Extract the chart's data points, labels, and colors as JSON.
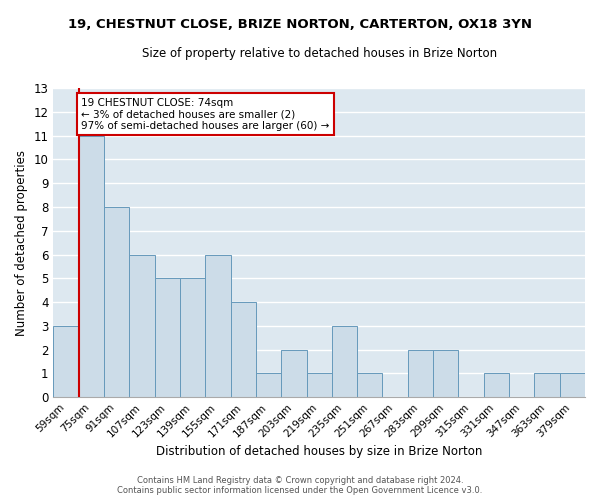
{
  "title": "19, CHESTNUT CLOSE, BRIZE NORTON, CARTERTON, OX18 3YN",
  "subtitle": "Size of property relative to detached houses in Brize Norton",
  "xlabel": "Distribution of detached houses by size in Brize Norton",
  "ylabel": "Number of detached properties",
  "categories": [
    "59sqm",
    "75sqm",
    "91sqm",
    "107sqm",
    "123sqm",
    "139sqm",
    "155sqm",
    "171sqm",
    "187sqm",
    "203sqm",
    "219sqm",
    "235sqm",
    "251sqm",
    "267sqm",
    "283sqm",
    "299sqm",
    "315sqm",
    "331sqm",
    "347sqm",
    "363sqm",
    "379sqm"
  ],
  "values": [
    3,
    11,
    8,
    6,
    5,
    5,
    6,
    4,
    1,
    2,
    1,
    3,
    1,
    0,
    2,
    2,
    0,
    1,
    0,
    1,
    1
  ],
  "bar_color": "#ccdce8",
  "bar_edge_color": "#6699bb",
  "background_color": "#dde8f0",
  "grid_color": "#ffffff",
  "annotation_text": "19 CHESTNUT CLOSE: 74sqm\n← 3% of detached houses are smaller (2)\n97% of semi-detached houses are larger (60) →",
  "annotation_box_facecolor": "#ffffff",
  "annotation_box_edgecolor": "#cc0000",
  "vline_x_index": 1,
  "vline_color": "#cc0000",
  "ylim": [
    0,
    13
  ],
  "yticks": [
    0,
    1,
    2,
    3,
    4,
    5,
    6,
    7,
    8,
    9,
    10,
    11,
    12,
    13
  ],
  "fig_facecolor": "#ffffff",
  "footer_line1": "Contains HM Land Registry data © Crown copyright and database right 2024.",
  "footer_line2": "Contains public sector information licensed under the Open Government Licence v3.0."
}
